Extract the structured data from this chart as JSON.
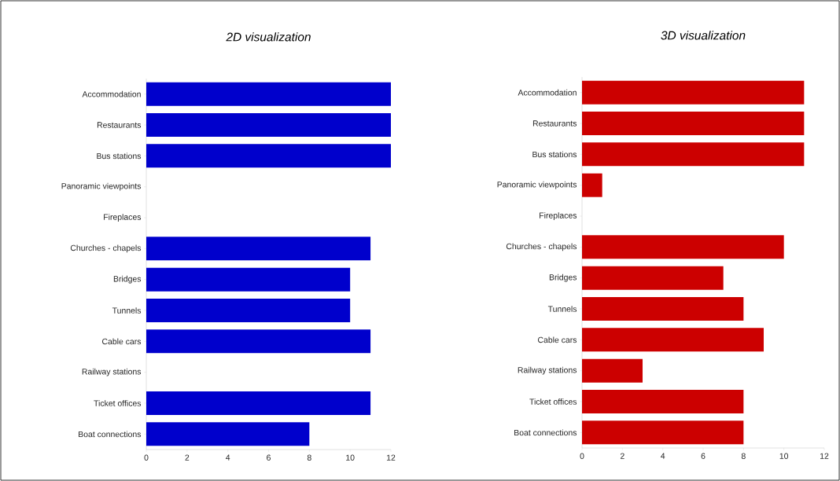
{
  "chart_data": [
    {
      "type": "bar",
      "orientation": "horizontal",
      "title": "2D visualization",
      "categories": [
        "Accommodation",
        "Restaurants",
        "Bus stations",
        "Panoramic viewpoints",
        "Fireplaces",
        "Churches - chapels",
        "Bridges",
        "Tunnels",
        "Cable cars",
        "Railway stations",
        "Ticket offices",
        "Boat connections"
      ],
      "values": [
        12,
        12,
        12,
        0,
        0,
        11,
        10,
        10,
        11,
        0,
        11,
        8
      ],
      "color": "#0000cc",
      "xlim": [
        0,
        12
      ],
      "xticks": [
        0,
        2,
        4,
        6,
        8,
        10,
        12
      ]
    },
    {
      "type": "bar",
      "orientation": "horizontal",
      "title": "3D visualization",
      "categories": [
        "Accommodation",
        "Restaurants",
        "Bus stations",
        "Panoramic viewpoints",
        "Fireplaces",
        "Churches - chapels",
        "Bridges",
        "Tunnels",
        "Cable cars",
        "Railway stations",
        "Ticket offices",
        "Boat connections"
      ],
      "values": [
        11,
        11,
        11,
        1,
        0,
        10,
        7,
        8,
        9,
        3,
        8,
        8
      ],
      "color": "#cc0000",
      "xlim": [
        0,
        12
      ],
      "xticks": [
        0,
        2,
        4,
        6,
        8,
        10,
        12
      ]
    }
  ]
}
